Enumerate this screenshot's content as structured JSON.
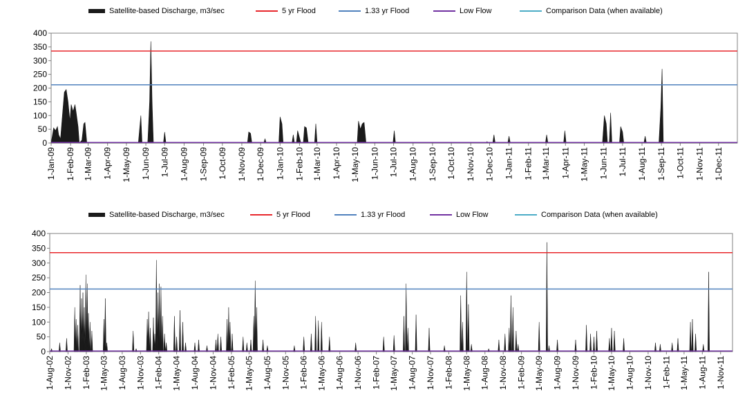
{
  "legend": {
    "discharge": "Satellite-based Discharge, m3/sec",
    "flood5": "5 yr Flood",
    "flood133": "1.33 yr Flood",
    "lowflow": "Low Flow",
    "comparison": "Comparison Data (when available)"
  },
  "colors": {
    "discharge": "#1a1a1a",
    "flood5": "#e8262b",
    "flood133": "#4f81bd",
    "lowflow": "#7030a0",
    "comparison": "#4bacc6",
    "axis": "#808080"
  },
  "chart_data": [
    {
      "type": "area",
      "ylim": [
        0,
        400
      ],
      "yticks": [
        0,
        50,
        100,
        150,
        200,
        250,
        300,
        350,
        400
      ],
      "grid": false,
      "legend_position": "top",
      "x_range": [
        "1-Jan-09",
        "31-Dec-11"
      ],
      "xticks": [
        "1-Jan-09",
        "1-Feb-09",
        "1-Mar-09",
        "1-Apr-09",
        "1-May-09",
        "1-Jun-09",
        "1-Jul-09",
        "1-Aug-09",
        "1-Sep-09",
        "1-Oct-09",
        "1-Nov-09",
        "1-Dec-09",
        "1-Jan-10",
        "1-Feb-10",
        "1-Mar-10",
        "1-Apr-10",
        "1-May-10",
        "1-Jun-10",
        "1-Jul-10",
        "1-Aug-10",
        "1-Sep-10",
        "1-Oct-10",
        "1-Nov-10",
        "1-Dec-10",
        "1-Jan-11",
        "1-Feb-11",
        "1-Mar-11",
        "1-Apr-11",
        "1-May-11",
        "1-Jun-11",
        "1-Jul-11",
        "1-Aug-11",
        "1-Sep-11",
        "1-Oct-11",
        "1-Nov-11",
        "1-Dec-11"
      ],
      "thresholds": {
        "flood5": 335,
        "flood133": 212,
        "lowflow": 2
      },
      "series": [
        {
          "name": "Satellite-based Discharge, m3/sec",
          "points": [
            [
              "2009-01-01",
              0
            ],
            [
              "2009-01-05",
              55
            ],
            [
              "2009-01-08",
              45
            ],
            [
              "2009-01-11",
              60
            ],
            [
              "2009-01-13",
              30
            ],
            [
              "2009-01-16",
              15
            ],
            [
              "2009-01-19",
              100
            ],
            [
              "2009-01-22",
              185
            ],
            [
              "2009-01-25",
              195
            ],
            [
              "2009-01-28",
              150
            ],
            [
              "2009-01-31",
              80
            ],
            [
              "2009-02-02",
              140
            ],
            [
              "2009-02-05",
              115
            ],
            [
              "2009-02-08",
              140
            ],
            [
              "2009-02-10",
              110
            ],
            [
              "2009-02-13",
              60
            ],
            [
              "2009-02-15",
              0
            ],
            [
              "2009-02-19",
              10
            ],
            [
              "2009-02-22",
              70
            ],
            [
              "2009-02-24",
              75
            ],
            [
              "2009-02-27",
              0
            ],
            [
              "2009-05-20",
              0
            ],
            [
              "2009-05-24",
              100
            ],
            [
              "2009-05-26",
              0
            ],
            [
              "2009-06-04",
              0
            ],
            [
              "2009-06-07",
              150
            ],
            [
              "2009-06-09",
              370
            ],
            [
              "2009-06-11",
              150
            ],
            [
              "2009-06-13",
              0
            ],
            [
              "2009-06-29",
              0
            ],
            [
              "2009-07-01",
              40
            ],
            [
              "2009-07-03",
              0
            ],
            [
              "2009-11-10",
              0
            ],
            [
              "2009-11-12",
              40
            ],
            [
              "2009-11-15",
              35
            ],
            [
              "2009-11-17",
              0
            ],
            [
              "2009-12-06",
              0
            ],
            [
              "2009-12-08",
              15
            ],
            [
              "2009-12-10",
              0
            ],
            [
              "2009-12-30",
              0
            ],
            [
              "2010-01-01",
              95
            ],
            [
              "2010-01-04",
              70
            ],
            [
              "2010-01-06",
              0
            ],
            [
              "2010-01-20",
              0
            ],
            [
              "2010-01-22",
              30
            ],
            [
              "2010-01-24",
              0
            ],
            [
              "2010-01-27",
              0
            ],
            [
              "2010-01-29",
              45
            ],
            [
              "2010-02-01",
              20
            ],
            [
              "2010-02-03",
              0
            ],
            [
              "2010-02-07",
              0
            ],
            [
              "2010-02-09",
              60
            ],
            [
              "2010-02-12",
              55
            ],
            [
              "2010-02-15",
              0
            ],
            [
              "2010-02-25",
              0
            ],
            [
              "2010-02-27",
              70
            ],
            [
              "2010-03-01",
              0
            ],
            [
              "2010-05-04",
              0
            ],
            [
              "2010-05-06",
              80
            ],
            [
              "2010-05-09",
              50
            ],
            [
              "2010-05-12",
              70
            ],
            [
              "2010-05-15",
              75
            ],
            [
              "2010-05-18",
              0
            ],
            [
              "2010-06-30",
              0
            ],
            [
              "2010-07-02",
              45
            ],
            [
              "2010-07-04",
              0
            ],
            [
              "2010-11-25",
              0
            ],
            [
              "2010-11-27",
              5
            ],
            [
              "2010-11-29",
              0
            ],
            [
              "2010-12-06",
              0
            ],
            [
              "2010-12-08",
              30
            ],
            [
              "2010-12-10",
              0
            ],
            [
              "2010-12-30",
              0
            ],
            [
              "2011-01-01",
              25
            ],
            [
              "2011-01-03",
              0
            ],
            [
              "2011-02-28",
              0
            ],
            [
              "2011-03-02",
              30
            ],
            [
              "2011-03-04",
              0
            ],
            [
              "2011-03-29",
              0
            ],
            [
              "2011-03-31",
              45
            ],
            [
              "2011-04-02",
              0
            ],
            [
              "2011-05-30",
              0
            ],
            [
              "2011-06-02",
              100
            ],
            [
              "2011-06-05",
              70
            ],
            [
              "2011-06-07",
              0
            ],
            [
              "2011-06-10",
              0
            ],
            [
              "2011-06-12",
              110
            ],
            [
              "2011-06-14",
              0
            ],
            [
              "2011-06-26",
              0
            ],
            [
              "2011-06-28",
              60
            ],
            [
              "2011-07-01",
              40
            ],
            [
              "2011-07-03",
              0
            ],
            [
              "2011-08-04",
              0
            ],
            [
              "2011-08-06",
              25
            ],
            [
              "2011-08-08",
              0
            ],
            [
              "2011-08-28",
              0
            ],
            [
              "2011-08-31",
              130
            ],
            [
              "2011-09-02",
              270
            ],
            [
              "2011-09-04",
              0
            ],
            [
              "2011-12-31",
              0
            ]
          ]
        },
        {
          "name": "5 yr Flood",
          "values": [
            335,
            335
          ]
        },
        {
          "name": "1.33 yr Flood",
          "values": [
            212,
            212
          ]
        },
        {
          "name": "Low Flow",
          "values": [
            2,
            2
          ]
        },
        {
          "name": "Comparison Data (when available)",
          "values": []
        }
      ]
    },
    {
      "type": "area",
      "ylim": [
        0,
        400
      ],
      "yticks": [
        0,
        50,
        100,
        150,
        200,
        250,
        300,
        350,
        400
      ],
      "grid": false,
      "legend_position": "top",
      "x_range": [
        "1-Aug-02",
        "31-Dec-11"
      ],
      "xticks": [
        "1-Aug-02",
        "1-Nov-02",
        "1-Feb-03",
        "1-May-03",
        "1-Aug-03",
        "1-Nov-03",
        "1-Feb-04",
        "1-May-04",
        "1-Aug-04",
        "1-Nov-04",
        "1-Feb-05",
        "1-May-05",
        "1-Aug-05",
        "1-Nov-05",
        "1-Feb-06",
        "1-May-06",
        "1-Aug-06",
        "1-Nov-06",
        "1-Feb-07",
        "1-May-07",
        "1-Aug-07",
        "1-Nov-07",
        "1-Feb-08",
        "1-May-08",
        "1-Aug-08",
        "1-Nov-08",
        "1-Feb-09",
        "1-May-09",
        "1-Aug-09",
        "1-Nov-09",
        "1-Feb-10",
        "1-May-10",
        "1-Aug-10",
        "1-Nov-10",
        "1-Feb-11",
        "1-May-11",
        "1-Aug-11",
        "1-Nov-11"
      ],
      "thresholds": {
        "flood5": 335,
        "flood133": 212,
        "lowflow": 2
      },
      "series": [
        {
          "name": "Satellite-based Discharge, m3/sec",
          "spikes": [
            [
              "2002-08-10",
              10
            ],
            [
              "2002-09-20",
              30
            ],
            [
              "2002-10-25",
              45
            ],
            [
              "2002-12-05",
              150
            ],
            [
              "2002-12-12",
              110
            ],
            [
              "2002-12-20",
              90
            ],
            [
              "2003-01-01",
              225
            ],
            [
              "2003-01-08",
              180
            ],
            [
              "2003-01-15",
              200
            ],
            [
              "2003-01-22",
              150
            ],
            [
              "2003-01-30",
              260
            ],
            [
              "2003-02-06",
              230
            ],
            [
              "2003-02-12",
              130
            ],
            [
              "2003-02-20",
              100
            ],
            [
              "2003-03-01",
              70
            ],
            [
              "2003-05-01",
              110
            ],
            [
              "2003-05-08",
              180
            ],
            [
              "2003-05-15",
              30
            ],
            [
              "2003-09-25",
              70
            ],
            [
              "2003-10-10",
              10
            ],
            [
              "2003-12-05",
              110
            ],
            [
              "2003-12-12",
              135
            ],
            [
              "2003-12-20",
              80
            ],
            [
              "2004-01-05",
              115
            ],
            [
              "2004-01-12",
              60
            ],
            [
              "2004-01-20",
              310
            ],
            [
              "2004-01-28",
              200
            ],
            [
              "2004-02-04",
              230
            ],
            [
              "2004-02-12",
              220
            ],
            [
              "2004-02-20",
              120
            ],
            [
              "2004-03-01",
              60
            ],
            [
              "2004-03-10",
              30
            ],
            [
              "2004-04-20",
              120
            ],
            [
              "2004-05-01",
              50
            ],
            [
              "2004-05-18",
              140
            ],
            [
              "2004-06-01",
              100
            ],
            [
              "2004-06-15",
              30
            ],
            [
              "2004-08-01",
              30
            ],
            [
              "2004-08-20",
              40
            ],
            [
              "2004-10-01",
              20
            ],
            [
              "2004-11-15",
              40
            ],
            [
              "2004-11-25",
              60
            ],
            [
              "2004-12-10",
              50
            ],
            [
              "2005-01-10",
              110
            ],
            [
              "2005-01-18",
              150
            ],
            [
              "2005-01-25",
              100
            ],
            [
              "2005-02-05",
              60
            ],
            [
              "2005-04-01",
              50
            ],
            [
              "2005-04-20",
              30
            ],
            [
              "2005-05-10",
              40
            ],
            [
              "2005-05-25",
              120
            ],
            [
              "2005-06-01",
              240
            ],
            [
              "2005-06-08",
              150
            ],
            [
              "2005-07-10",
              40
            ],
            [
              "2005-08-01",
              20
            ],
            [
              "2005-12-15",
              20
            ],
            [
              "2006-02-01",
              50
            ],
            [
              "2006-03-10",
              60
            ],
            [
              "2006-04-01",
              120
            ],
            [
              "2006-04-15",
              105
            ],
            [
              "2006-05-01",
              100
            ],
            [
              "2006-06-10",
              50
            ],
            [
              "2006-10-20",
              30
            ],
            [
              "2007-03-10",
              50
            ],
            [
              "2007-05-01",
              55
            ],
            [
              "2007-06-20",
              120
            ],
            [
              "2007-07-01",
              230
            ],
            [
              "2007-07-10",
              80
            ],
            [
              "2007-08-20",
              125
            ],
            [
              "2007-10-25",
              80
            ],
            [
              "2008-01-10",
              20
            ],
            [
              "2008-04-01",
              190
            ],
            [
              "2008-04-10",
              100
            ],
            [
              "2008-05-01",
              270
            ],
            [
              "2008-05-10",
              160
            ],
            [
              "2008-05-25",
              25
            ],
            [
              "2008-08-20",
              10
            ],
            [
              "2008-10-10",
              40
            ],
            [
              "2008-11-10",
              60
            ],
            [
              "2008-12-01",
              80
            ],
            [
              "2008-12-10",
              190
            ],
            [
              "2008-12-20",
              150
            ],
            [
              "2009-01-05",
              70
            ],
            [
              "2009-01-15",
              25
            ],
            [
              "2009-05-01",
              100
            ],
            [
              "2009-06-09",
              370
            ],
            [
              "2009-06-20",
              20
            ],
            [
              "2009-08-01",
              40
            ],
            [
              "2009-11-01",
              40
            ],
            [
              "2009-12-25",
              90
            ],
            [
              "2010-01-15",
              60
            ],
            [
              "2010-02-01",
              50
            ],
            [
              "2010-02-15",
              70
            ],
            [
              "2010-04-20",
              45
            ],
            [
              "2010-05-01",
              80
            ],
            [
              "2010-05-15",
              70
            ],
            [
              "2010-07-01",
              45
            ],
            [
              "2010-12-08",
              30
            ],
            [
              "2011-01-01",
              25
            ],
            [
              "2011-03-02",
              30
            ],
            [
              "2011-03-31",
              45
            ],
            [
              "2011-06-02",
              100
            ],
            [
              "2011-06-12",
              110
            ],
            [
              "2011-06-28",
              60
            ],
            [
              "2011-08-06",
              25
            ],
            [
              "2011-09-02",
              270
            ]
          ]
        },
        {
          "name": "5 yr Flood",
          "values": [
            335,
            335
          ]
        },
        {
          "name": "1.33 yr Flood",
          "values": [
            212,
            212
          ]
        },
        {
          "name": "Low Flow",
          "values": [
            2,
            2
          ]
        },
        {
          "name": "Comparison Data (when available)",
          "values": []
        }
      ]
    }
  ]
}
